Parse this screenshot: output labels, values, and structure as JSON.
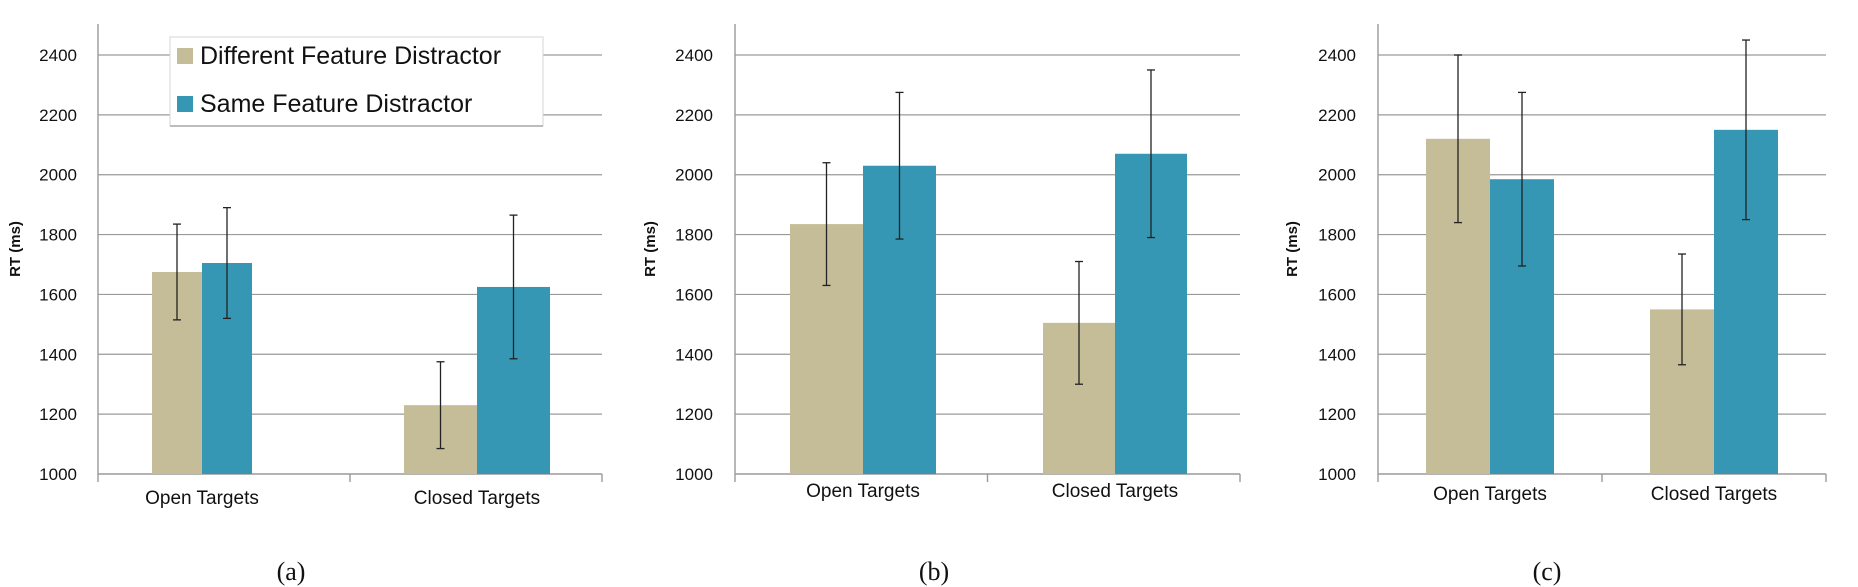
{
  "colors": {
    "different": "#c4bd97",
    "same": "#3697b4",
    "grid": "#9a9a9a",
    "axis": "#9a9a9a"
  },
  "legend": {
    "items": [
      {
        "label": "Different Feature Distractor",
        "color": "#c4bd97"
      },
      {
        "label": "Same Feature Distractor",
        "color": "#3697b4"
      }
    ]
  },
  "chart_data": [
    {
      "type": "bar",
      "panel_label": "(a)",
      "ylabel": "RT (ms)",
      "ylim": [
        1000,
        2500
      ],
      "yticks": [
        1000,
        1200,
        1400,
        1600,
        1800,
        2000,
        2200,
        2400
      ],
      "categories": [
        "Open Targets",
        "Closed Targets"
      ],
      "grid": true,
      "legend_position": "top-left",
      "series": [
        {
          "name": "Different Feature Distractor",
          "values": [
            1675,
            1230
          ],
          "error": [
            160,
            145
          ]
        },
        {
          "name": "Same Feature Distractor",
          "values": [
            1705,
            1625
          ],
          "error": [
            185,
            240
          ]
        }
      ]
    },
    {
      "type": "bar",
      "panel_label": "(b)",
      "ylabel": "RT (ms)",
      "ylim": [
        1000,
        2500
      ],
      "yticks": [
        1000,
        1200,
        1400,
        1600,
        1800,
        2000,
        2200,
        2400
      ],
      "categories": [
        "Open Targets",
        "Closed Targets"
      ],
      "grid": true,
      "series": [
        {
          "name": "Different Feature Distractor",
          "values": [
            1835,
            1505
          ],
          "error": [
            205,
            205
          ]
        },
        {
          "name": "Same Feature Distractor",
          "values": [
            2030,
            2070
          ],
          "error": [
            245,
            280
          ]
        }
      ]
    },
    {
      "type": "bar",
      "panel_label": "(c)",
      "ylabel": "RT (ms)",
      "ylim": [
        1000,
        2500
      ],
      "yticks": [
        1000,
        1200,
        1400,
        1600,
        1800,
        2000,
        2200,
        2400
      ],
      "categories": [
        "Open Targets",
        "Closed Targets"
      ],
      "grid": true,
      "series": [
        {
          "name": "Different Feature Distractor",
          "values": [
            2120,
            1550
          ],
          "error": [
            280,
            185
          ]
        },
        {
          "name": "Same Feature Distractor",
          "values": [
            1985,
            2150
          ],
          "error": [
            290,
            300
          ]
        }
      ]
    }
  ]
}
